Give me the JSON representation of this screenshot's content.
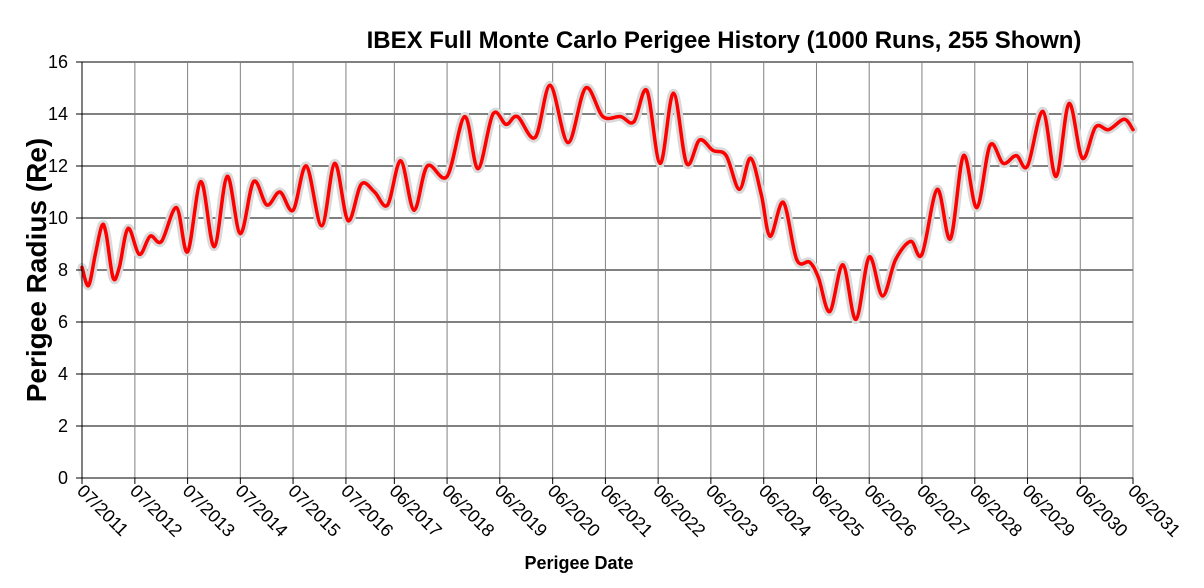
{
  "chart_data": {
    "type": "line",
    "title": "IBEX Full Monte Carlo Perigee History (1000 Runs, 255 Shown)",
    "xlabel": "Perigee Date",
    "ylabel": "Perigee Radius (Re)",
    "ylim": [
      0,
      16
    ],
    "yticks": [
      "0",
      "2",
      "4",
      "6",
      "8",
      "10",
      "12",
      "14",
      "16"
    ],
    "xlim": [
      "2011-07-01",
      "2031-06-01"
    ],
    "xticks": [
      {
        "date": "2011-07-01",
        "label": "07/2011"
      },
      {
        "date": "2012-07-01",
        "label": "07/2012"
      },
      {
        "date": "2013-07-01",
        "label": "07/2013"
      },
      {
        "date": "2014-07-01",
        "label": "07/2014"
      },
      {
        "date": "2015-07-01",
        "label": "07/2015"
      },
      {
        "date": "2016-07-01",
        "label": "07/2016"
      },
      {
        "date": "2017-06-01",
        "label": "06/2017"
      },
      {
        "date": "2018-06-01",
        "label": "06/2018"
      },
      {
        "date": "2019-06-01",
        "label": "06/2019"
      },
      {
        "date": "2020-06-01",
        "label": "06/2020"
      },
      {
        "date": "2021-06-01",
        "label": "06/2021"
      },
      {
        "date": "2022-06-01",
        "label": "06/2022"
      },
      {
        "date": "2023-06-01",
        "label": "06/2023"
      },
      {
        "date": "2024-06-01",
        "label": "06/2024"
      },
      {
        "date": "2025-06-01",
        "label": "06/2025"
      },
      {
        "date": "2026-06-01",
        "label": "06/2026"
      },
      {
        "date": "2027-06-01",
        "label": "06/2027"
      },
      {
        "date": "2028-06-01",
        "label": "06/2028"
      },
      {
        "date": "2029-06-01",
        "label": "06/2029"
      },
      {
        "date": "2030-06-01",
        "label": "06/2030"
      },
      {
        "date": "2031-06-01",
        "label": "06/2031"
      }
    ],
    "grid": true,
    "colors": {
      "runs": "#d9d9d9",
      "bound": "#ff0000"
    },
    "series": [
      {
        "points": [
          [
            "2011-07-01",
            8.1
          ],
          [
            "2011-08-15",
            7.4
          ],
          [
            "2011-10-01",
            8.6
          ],
          [
            "2011-11-15",
            9.7
          ],
          [
            "2011-12-15",
            9.4
          ],
          [
            "2012-02-01",
            7.7
          ],
          [
            "2012-03-15",
            8.1
          ],
          [
            "2012-05-15",
            9.6
          ],
          [
            "2012-08-01",
            8.6
          ],
          [
            "2012-10-15",
            9.3
          ],
          [
            "2013-01-01",
            9.1
          ],
          [
            "2013-04-15",
            10.4
          ],
          [
            "2013-07-01",
            8.7
          ],
          [
            "2013-10-01",
            11.4
          ],
          [
            "2014-01-01",
            8.9
          ],
          [
            "2014-04-01",
            11.6
          ],
          [
            "2014-07-01",
            9.4
          ],
          [
            "2014-10-01",
            11.4
          ],
          [
            "2015-01-01",
            10.5
          ],
          [
            "2015-04-01",
            11.0
          ],
          [
            "2015-07-01",
            10.3
          ],
          [
            "2015-10-01",
            12.0
          ],
          [
            "2016-01-15",
            9.7
          ],
          [
            "2016-04-15",
            12.1
          ],
          [
            "2016-07-15",
            9.9
          ],
          [
            "2016-10-15",
            11.3
          ],
          [
            "2017-01-15",
            11.0
          ],
          [
            "2017-04-15",
            10.5
          ],
          [
            "2017-07-15",
            12.2
          ],
          [
            "2017-10-15",
            10.3
          ],
          [
            "2018-01-15",
            12.0
          ],
          [
            "2018-06-01",
            11.6
          ],
          [
            "2018-10-01",
            13.9
          ],
          [
            "2019-01-01",
            11.9
          ],
          [
            "2019-04-15",
            14.0
          ],
          [
            "2019-07-15",
            13.6
          ],
          [
            "2019-10-01",
            13.9
          ],
          [
            "2020-02-01",
            13.1
          ],
          [
            "2020-05-15",
            15.1
          ],
          [
            "2020-09-15",
            12.9
          ],
          [
            "2021-01-15",
            15.0
          ],
          [
            "2021-05-15",
            13.9
          ],
          [
            "2021-09-15",
            13.9
          ],
          [
            "2021-12-15",
            13.7
          ],
          [
            "2022-03-15",
            14.9
          ],
          [
            "2022-06-15",
            12.1
          ],
          [
            "2022-09-15",
            14.8
          ],
          [
            "2022-12-15",
            12.1
          ],
          [
            "2023-03-15",
            13.0
          ],
          [
            "2023-06-15",
            12.6
          ],
          [
            "2023-09-15",
            12.4
          ],
          [
            "2023-12-15",
            11.1
          ],
          [
            "2024-03-01",
            12.3
          ],
          [
            "2024-05-15",
            10.9
          ],
          [
            "2024-07-15",
            9.3
          ],
          [
            "2024-10-15",
            10.6
          ],
          [
            "2025-01-15",
            8.4
          ],
          [
            "2025-04-15",
            8.3
          ],
          [
            "2025-06-15",
            7.7
          ],
          [
            "2025-09-01",
            6.4
          ],
          [
            "2025-12-01",
            8.2
          ],
          [
            "2026-03-01",
            6.1
          ],
          [
            "2026-06-01",
            8.5
          ],
          [
            "2026-09-01",
            7.0
          ],
          [
            "2026-12-01",
            8.4
          ],
          [
            "2027-03-15",
            9.1
          ],
          [
            "2027-06-01",
            8.6
          ],
          [
            "2027-09-15",
            11.1
          ],
          [
            "2027-12-15",
            9.2
          ],
          [
            "2028-03-15",
            12.4
          ],
          [
            "2028-06-15",
            10.4
          ],
          [
            "2028-09-15",
            12.8
          ],
          [
            "2028-12-15",
            12.1
          ],
          [
            "2029-03-15",
            12.4
          ],
          [
            "2029-06-01",
            12.0
          ],
          [
            "2029-09-15",
            14.1
          ],
          [
            "2029-12-15",
            11.6
          ],
          [
            "2030-03-15",
            14.4
          ],
          [
            "2030-06-15",
            12.3
          ],
          [
            "2030-09-15",
            13.5
          ],
          [
            "2030-12-15",
            13.4
          ],
          [
            "2031-04-01",
            13.8
          ],
          [
            "2031-06-01",
            13.4
          ]
        ]
      }
    ]
  }
}
